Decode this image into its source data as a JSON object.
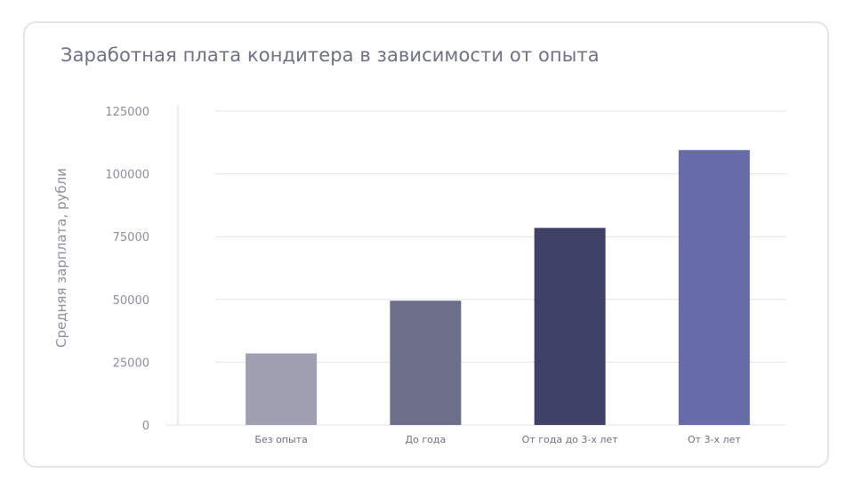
{
  "chart_data": {
    "type": "bar",
    "title": "Заработная плата кондитера в зависимости от опыта",
    "xlabel": "",
    "ylabel": "Средняя зарплата, рубли",
    "categories": [
      "Без опыта",
      "До года",
      "От года до 3-х лет",
      "От 3-х лет"
    ],
    "values": [
      28500,
      49500,
      78500,
      109500
    ],
    "colors": [
      "#a09fb2",
      "#6e6f89",
      "#3f4166",
      "#676ca8"
    ],
    "ylim": [
      0,
      125000
    ],
    "yticks": [
      0,
      25000,
      50000,
      75000,
      100000,
      125000
    ],
    "ytick_labels": [
      "0",
      "25000",
      "50000",
      "75000",
      "100000",
      "125000"
    ],
    "grid": true,
    "legend": "none"
  }
}
